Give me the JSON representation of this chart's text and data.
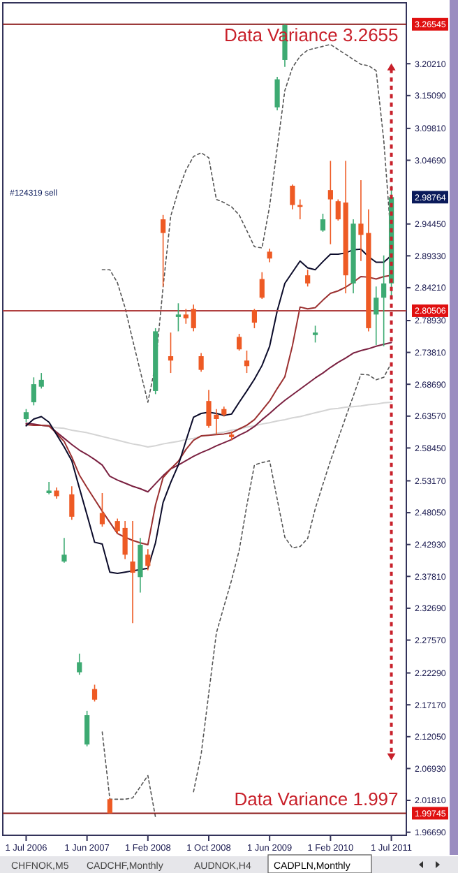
{
  "chart_data": {
    "type": "candlestick",
    "categories": [
      "1 Jul 2006",
      null,
      null,
      null,
      null,
      null,
      null,
      null,
      "1 Jun 2007",
      null,
      null,
      null,
      null,
      null,
      null,
      null,
      "1 Feb 2008",
      null,
      null,
      null,
      null,
      null,
      null,
      null,
      "1 Oct 2008",
      null,
      null,
      null,
      null,
      null,
      null,
      null,
      "1 Jun 2009",
      null,
      null,
      null,
      null,
      null,
      null,
      null,
      "1 Feb 2010",
      null,
      null,
      null,
      null,
      null,
      null,
      null,
      "1 Jul 2011"
    ],
    "ohlc": [
      [
        2.631,
        2.647,
        2.626,
        2.642
      ],
      [
        2.658,
        2.698,
        2.653,
        2.687
      ],
      [
        2.683,
        2.705,
        2.68,
        2.694
      ],
      [
        2.512,
        2.53,
        2.51,
        2.516
      ],
      [
        2.516,
        2.521,
        2.503,
        2.507
      ],
      [
        2.402,
        2.44,
        2.4,
        2.413
      ],
      [
        2.51,
        2.523,
        2.469,
        2.474
      ],
      [
        2.224,
        2.254,
        2.22,
        2.24
      ],
      [
        2.108,
        2.162,
        2.105,
        2.155
      ],
      [
        2.197,
        2.204,
        2.177,
        2.18
      ],
      [
        2.48,
        2.512,
        2.458,
        2.462
      ],
      [
        2.02,
        2.022,
        1.99745,
        1.99745
      ],
      [
        2.467,
        2.471,
        2.447,
        2.451
      ],
      [
        2.456,
        2.467,
        2.406,
        2.413
      ],
      [
        2.402,
        2.467,
        2.303,
        2.384
      ],
      [
        2.377,
        2.44,
        2.352,
        2.429
      ],
      [
        2.413,
        2.422,
        2.388,
        2.395
      ],
      [
        2.676,
        2.777,
        2.671,
        2.772
      ],
      [
        2.952,
        2.959,
        2.844,
        2.93
      ],
      [
        2.732,
        2.77,
        2.705,
        2.725
      ],
      [
        2.795,
        2.817,
        2.772,
        2.799
      ],
      [
        2.799,
        2.808,
        2.784,
        2.793
      ],
      [
        2.808,
        2.815,
        2.772,
        2.777
      ],
      [
        2.732,
        2.737,
        2.707,
        2.71
      ],
      [
        2.66,
        2.678,
        2.617,
        2.62
      ],
      [
        2.638,
        2.647,
        2.606,
        2.631
      ],
      [
        2.647,
        2.651,
        2.635,
        2.638
      ],
      [
        2.606,
        2.611,
        2.597,
        2.602
      ],
      [
        2.763,
        2.768,
        2.741,
        2.743
      ],
      [
        2.725,
        2.741,
        2.705,
        2.716
      ],
      [
        2.806,
        2.808,
        2.777,
        2.786
      ],
      [
        2.856,
        2.867,
        2.824,
        2.826
      ],
      [
        2.9,
        2.905,
        2.883,
        2.889
      ],
      [
        3.132,
        3.181,
        3.127,
        3.177
      ],
      [
        3.208,
        3.26545,
        3.197,
        3.264
      ],
      [
        3.006,
        3.008,
        2.968,
        2.975
      ],
      [
        2.975,
        2.984,
        2.952,
        2.972
      ],
      [
        2.862,
        2.871,
        2.844,
        2.849
      ],
      [
        2.766,
        2.781,
        2.754,
        2.77
      ],
      [
        2.934,
        2.961,
        2.932,
        2.952
      ],
      [
        2.999,
        3.046,
        2.912,
        2.984
      ],
      [
        2.981,
        2.984,
        2.95,
        2.952
      ],
      [
        2.979,
        3.046,
        2.833,
        2.862
      ],
      [
        2.849,
        2.952,
        2.833,
        2.945
      ],
      [
        2.945,
        3.015,
        2.885,
        2.927
      ],
      [
        2.93,
        2.968,
        2.772,
        2.777
      ],
      [
        2.799,
        2.844,
        2.75,
        2.826
      ],
      [
        2.826,
        2.894,
        2.748,
        2.849
      ],
      [
        2.849,
        3.006,
        2.826,
        2.98764
      ]
    ],
    "colors": [
      "#3daa72",
      "#3daa72",
      "#3daa72",
      "#3daa72",
      "#ee5a24",
      "#3daa72",
      "#ee5a24",
      "#3daa72",
      "#3daa72",
      "#ee5a24",
      "#ee5a24",
      "#ee5a24",
      "#ee5a24",
      "#ee5a24",
      "#ee5a24",
      "#3daa72",
      "#ee5a24",
      "#3daa72",
      "#ee5a24",
      "#ee5a24",
      "#3daa72",
      "#ee5a24",
      "#ee5a24",
      "#ee5a24",
      "#ee5a24",
      "#ee5a24",
      "#ee5a24",
      "#ee5a24",
      "#ee5a24",
      "#ee5a24",
      "#ee5a24",
      "#ee5a24",
      "#ee5a24",
      "#3daa72",
      "#3daa72",
      "#ee5a24",
      "#ee5a24",
      "#ee5a24",
      "#3daa72",
      "#3daa72",
      "#ee5a24",
      "#ee5a24",
      "#ee5a24",
      "#3daa72",
      "#ee5a24",
      "#ee5a24",
      "#3daa72",
      "#3daa72",
      "#3daa72"
    ],
    "series": [
      {
        "type": "line",
        "color": "#d4d4d4",
        "line_style": "solid",
        "values": [
          2.624,
          2.622,
          2.621,
          2.619,
          2.617,
          2.616,
          2.613,
          2.611,
          2.609,
          2.606,
          2.603,
          2.6,
          2.597,
          2.594,
          2.591,
          2.589,
          2.586,
          2.588,
          2.591,
          2.593,
          2.595,
          2.598,
          2.6,
          2.603,
          2.605,
          2.608,
          2.61,
          2.613,
          2.615,
          2.618,
          2.62,
          2.623,
          2.625,
          2.628,
          2.63,
          2.633,
          2.635,
          2.638,
          2.641,
          2.644,
          2.647,
          2.648,
          2.65,
          2.651,
          2.652,
          2.654,
          2.655,
          2.657,
          2.658
        ]
      },
      {
        "type": "line",
        "color": "#555555",
        "line_style": "dashed",
        "values": [
          null,
          null,
          null,
          null,
          null,
          null,
          null,
          null,
          null,
          null,
          2.871,
          2.871,
          2.85,
          2.81,
          2.758,
          2.708,
          2.658,
          2.718,
          2.843,
          2.957,
          2.998,
          3.031,
          3.053,
          3.059,
          3.051,
          2.984,
          2.979,
          2.972,
          2.959,
          2.934,
          2.908,
          2.906,
          2.973,
          3.067,
          3.159,
          3.196,
          3.214,
          3.224,
          3.227,
          3.23,
          3.233,
          3.225,
          3.217,
          3.209,
          3.201,
          3.199,
          3.191,
          3.079,
          2.916
        ]
      },
      {
        "type": "line",
        "color": "#555555",
        "line_style": "dashed",
        "values": [
          null,
          null,
          null,
          null,
          null,
          null,
          null,
          null,
          null,
          null,
          2.128,
          2.02,
          2.02,
          2.02,
          2.022,
          2.04,
          2.058,
          1.991,
          null,
          null,
          null,
          null,
          2.032,
          2.092,
          2.19,
          2.287,
          2.33,
          2.372,
          2.42,
          2.492,
          2.557,
          2.561,
          2.564,
          2.502,
          2.441,
          2.424,
          2.426,
          2.439,
          2.487,
          2.526,
          2.564,
          2.599,
          2.634,
          2.668,
          2.703,
          2.702,
          2.694,
          2.698,
          2.721
        ]
      },
      {
        "type": "line",
        "color": "#7a2040",
        "line_style": "solid",
        "values": [
          2.624,
          2.623,
          2.621,
          2.62,
          2.61,
          2.6,
          2.59,
          2.581,
          2.574,
          2.566,
          2.557,
          2.539,
          2.533,
          2.528,
          2.523,
          2.519,
          2.514,
          2.527,
          2.54,
          2.551,
          2.557,
          2.564,
          2.571,
          2.577,
          2.582,
          2.588,
          2.593,
          2.598,
          2.605,
          2.611,
          2.619,
          2.63,
          2.64,
          2.651,
          2.661,
          2.67,
          2.679,
          2.688,
          2.697,
          2.705,
          2.714,
          2.722,
          2.729,
          2.737,
          2.741,
          2.744,
          2.748,
          2.751,
          2.754
        ]
      },
      {
        "type": "line",
        "color": "#9b3030",
        "line_style": "solid",
        "values": [
          2.622,
          2.621,
          2.621,
          2.62,
          2.608,
          2.595,
          2.57,
          2.541,
          2.521,
          2.502,
          2.483,
          2.465,
          2.447,
          2.441,
          2.436,
          2.432,
          2.429,
          2.493,
          2.537,
          2.551,
          2.563,
          2.582,
          2.597,
          2.604,
          2.605,
          2.606,
          2.607,
          2.609,
          2.615,
          2.621,
          2.63,
          2.645,
          2.66,
          2.68,
          2.699,
          2.749,
          2.811,
          2.808,
          2.81,
          2.822,
          2.833,
          2.837,
          2.843,
          2.851,
          2.86,
          2.859,
          2.856,
          2.86,
          2.862
        ]
      },
      {
        "type": "line",
        "color": "#0b0b2a",
        "line_style": "solid",
        "values": [
          2.62,
          2.631,
          2.635,
          2.626,
          2.606,
          2.586,
          2.564,
          2.52,
          2.477,
          2.433,
          2.43,
          2.385,
          2.383,
          2.385,
          2.387,
          2.389,
          2.391,
          2.432,
          2.497,
          2.529,
          2.557,
          2.596,
          2.634,
          2.64,
          2.642,
          2.64,
          2.637,
          2.639,
          2.658,
          2.676,
          2.695,
          2.717,
          2.748,
          2.805,
          2.849,
          2.867,
          2.885,
          2.874,
          2.871,
          2.884,
          2.896,
          2.896,
          2.898,
          2.903,
          2.904,
          2.892,
          2.883,
          2.883,
          2.894
        ]
      }
    ],
    "ylim": [
      1.962,
      3.3
    ],
    "yticks": [
      {
        "value": 1.9669,
        "label": "1.96690"
      },
      {
        "value": 2.0181,
        "label": "2.01810"
      },
      {
        "value": 2.0693,
        "label": "2.06930"
      },
      {
        "value": 2.1205,
        "label": "2.12050"
      },
      {
        "value": 2.1717,
        "label": "2.17170"
      },
      {
        "value": 2.2229,
        "label": "2.22290"
      },
      {
        "value": 2.2757,
        "label": "2.27570"
      },
      {
        "value": 2.3269,
        "label": "2.32690"
      },
      {
        "value": 2.3781,
        "label": "2.37810"
      },
      {
        "value": 2.4293,
        "label": "2.42930"
      },
      {
        "value": 2.4805,
        "label": "2.48050"
      },
      {
        "value": 2.5317,
        "label": "2.53170"
      },
      {
        "value": 2.5845,
        "label": "2.58450"
      },
      {
        "value": 2.6357,
        "label": "2.63570"
      },
      {
        "value": 2.6869,
        "label": "2.68690"
      },
      {
        "value": 2.7381,
        "label": "2.73810"
      },
      {
        "value": 2.7893,
        "label": "2.78930"
      },
      {
        "value": 2.8421,
        "label": "2.84210"
      },
      {
        "value": 2.8933,
        "label": "2.89330"
      },
      {
        "value": 2.9445,
        "label": "2.94450"
      },
      {
        "value": 3.0469,
        "label": "3.04690"
      },
      {
        "value": 3.0981,
        "label": "3.09810"
      },
      {
        "value": 3.1509,
        "label": "3.15090"
      },
      {
        "value": 3.2021,
        "label": "3.20210"
      }
    ],
    "ref_lines": [
      {
        "axis": "y",
        "value": 3.26545,
        "label": "3.26545",
        "color": "#8b1a1a"
      },
      {
        "axis": "y",
        "value": 2.80506,
        "label": "2.80506",
        "color": "#b04040"
      },
      {
        "axis": "y",
        "value": 1.99745,
        "label": "1.99745",
        "color": "#8b1a1a"
      }
    ],
    "annotations": [
      {
        "text": "Data Variance 3.2655",
        "x": "1 Jul 2011",
        "y": 3.2655
      },
      {
        "text": "Data Variance 1.997",
        "x": "1 Jul 2011",
        "y": 1.997
      },
      "2.98764",
      "#124319 sell",
      "CHFNOK,M5",
      "CADCHF,Monthly",
      "AUDNOK,H4",
      "CADPLN,Monthly"
    ]
  }
}
